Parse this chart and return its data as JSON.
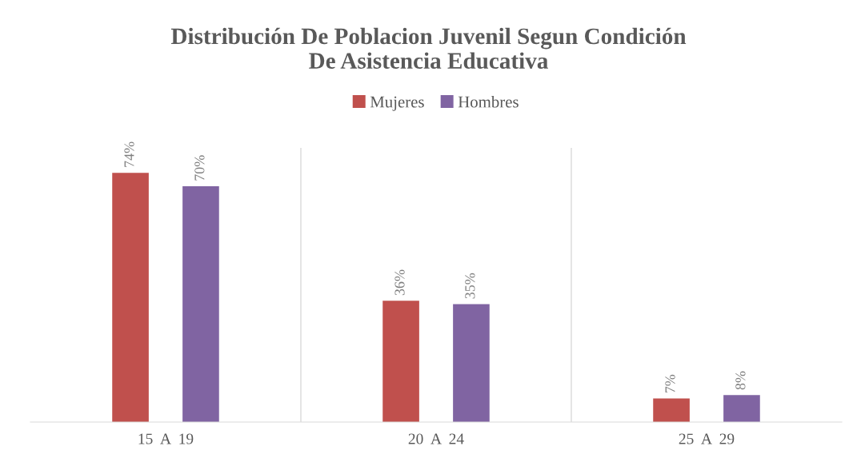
{
  "chart_data": {
    "type": "bar",
    "title": "Distribución De Poblacion Juvenil Segun Condición\nDe Asistencia Educativa",
    "categories": [
      "15  A  19",
      "20  A  24",
      "25  A  29"
    ],
    "series": [
      {
        "name": "Mujeres",
        "color": "#c0504d",
        "values": [
          74,
          36,
          7
        ],
        "value_labels": [
          "74%",
          "36%",
          "7%"
        ]
      },
      {
        "name": "Hombres",
        "color": "#8064a2",
        "values": [
          70,
          35,
          8
        ],
        "value_labels": [
          "70%",
          "35%",
          "8%"
        ]
      }
    ],
    "legend": "top",
    "grid": "x"
  }
}
